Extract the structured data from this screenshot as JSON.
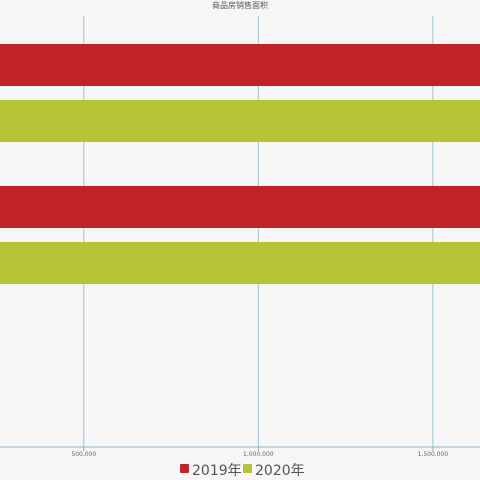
{
  "chart_data": {
    "type": "bar",
    "orientation": "horizontal",
    "title": "商品房销售面积",
    "categories": [
      "",
      ""
    ],
    "series": [
      {
        "name": "2019年",
        "color": "#c1232b",
        "values": [
          1715558,
          1715558
        ]
      },
      {
        "name": "2020年",
        "color": "#b5c334",
        "values": [
          1761000,
          1761000
        ]
      }
    ],
    "x_ticks": [
      {
        "value": 500000,
        "label": "500,000"
      },
      {
        "value": 1000000,
        "label": "1,000,000"
      },
      {
        "value": 1500000,
        "label": "1,500,000"
      }
    ],
    "grid": true,
    "legend_placement": "bottom-center",
    "xlim": [
      260000,
      1635000
    ]
  }
}
